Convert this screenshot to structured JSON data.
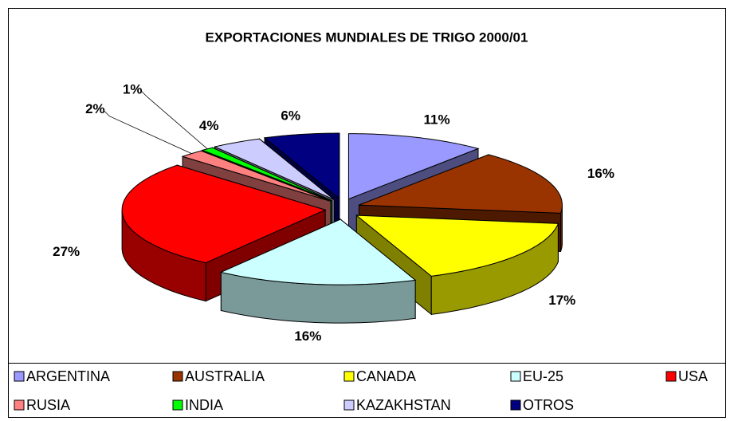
{
  "chart_data": {
    "type": "pie3d",
    "title": "EXPORTACIONES MUNDIALES DE TRIGO 2000/01",
    "categories": [
      "ARGENTINA",
      "AUSTRALIA",
      "CANADA",
      "EU-25",
      "USA",
      "RUSIA",
      "INDIA",
      "KAZAKHSTAN",
      "OTROS"
    ],
    "values": [
      11,
      16,
      17,
      16,
      27,
      2,
      1,
      4,
      6
    ],
    "value_labels": [
      "11%",
      "16%",
      "17%",
      "16%",
      "27%",
      "2%",
      "1%",
      "4%",
      "6%"
    ],
    "colors": [
      "#9999ff",
      "#993300",
      "#ffff00",
      "#ccffff",
      "#ff0000",
      "#ff8080",
      "#00ff00",
      "#ccccff",
      "#000080"
    ],
    "legend": "bottom"
  }
}
